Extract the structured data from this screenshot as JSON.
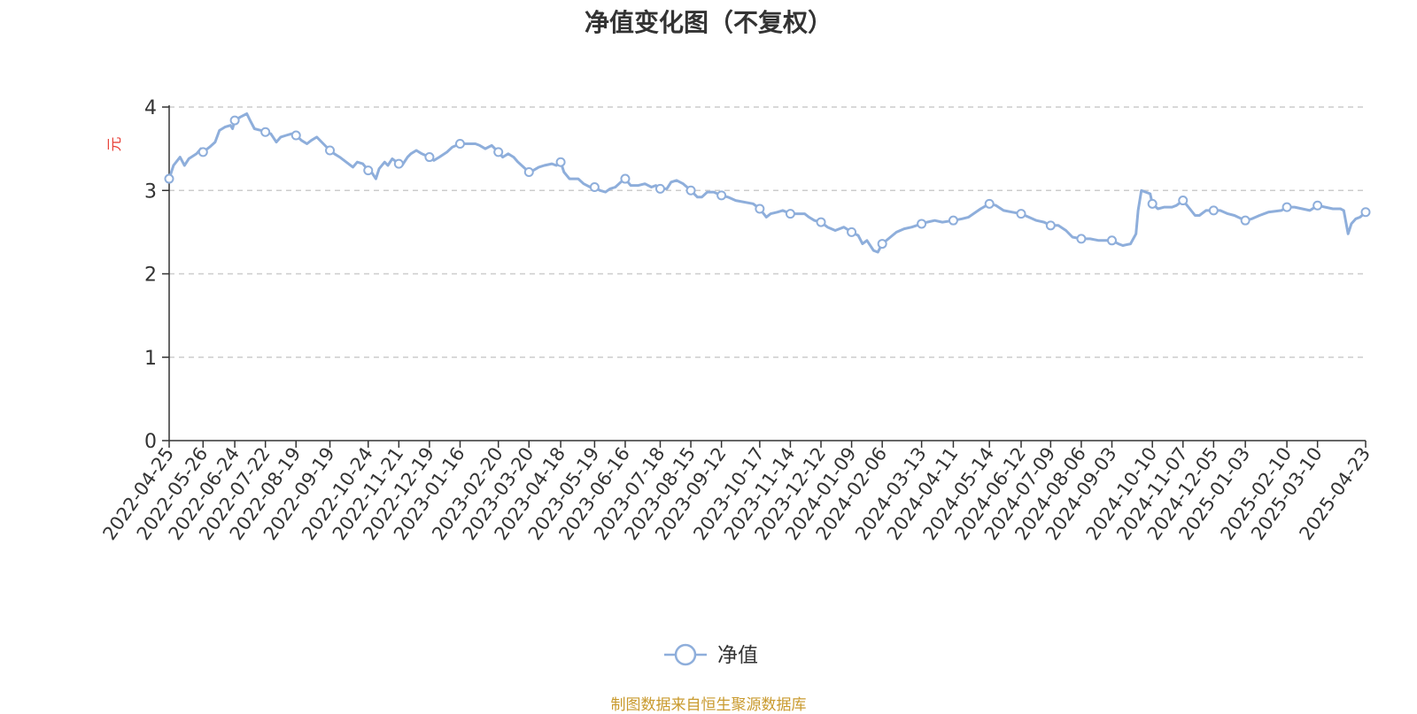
{
  "chart_data": {
    "type": "line",
    "title": "净值变化图（不复权）",
    "ylabel": "元",
    "xlabel": "",
    "ylim": [
      0,
      4
    ],
    "yticks": [
      0,
      1,
      2,
      3,
      4
    ],
    "grid": "horizontal dashed",
    "legend_position": "bottom-center",
    "x_tick_labels": [
      "2022-04-25",
      "2022-05-26",
      "2022-06-24",
      "2022-07-22",
      "2022-08-19",
      "2022-09-19",
      "2022-10-24",
      "2022-11-21",
      "2022-12-19",
      "2023-01-16",
      "2023-02-20",
      "2023-03-20",
      "2023-04-18",
      "2023-05-19",
      "2023-06-16",
      "2023-07-18",
      "2023-08-15",
      "2023-09-12",
      "2023-10-17",
      "2023-11-14",
      "2023-12-12",
      "2024-01-09",
      "2024-02-06",
      "2024-03-13",
      "2024-04-11",
      "2024-05-14",
      "2024-06-12",
      "2024-07-09",
      "2024-08-06",
      "2024-09-03",
      "2024-10-10",
      "2024-11-07",
      "2024-12-05",
      "2025-01-03",
      "2025-02-10",
      "2025-03-10",
      "2025-04-23"
    ],
    "series": [
      {
        "name": "净值",
        "color": "#8eaedb",
        "points": [
          [
            "2022-04-25",
            3.14
          ],
          [
            "2022-04-29",
            3.3
          ],
          [
            "2022-05-05",
            3.4
          ],
          [
            "2022-05-09",
            3.3
          ],
          [
            "2022-05-13",
            3.38
          ],
          [
            "2022-05-20",
            3.44
          ],
          [
            "2022-05-24",
            3.5
          ],
          [
            "2022-05-26",
            3.46
          ],
          [
            "2022-06-01",
            3.52
          ],
          [
            "2022-06-06",
            3.58
          ],
          [
            "2022-06-10",
            3.72
          ],
          [
            "2022-06-15",
            3.76
          ],
          [
            "2022-06-20",
            3.78
          ],
          [
            "2022-06-22",
            3.74
          ],
          [
            "2022-06-24",
            3.84
          ],
          [
            "2022-06-29",
            3.88
          ],
          [
            "2022-07-05",
            3.92
          ],
          [
            "2022-07-08",
            3.84
          ],
          [
            "2022-07-12",
            3.74
          ],
          [
            "2022-07-18",
            3.72
          ],
          [
            "2022-07-22",
            3.7
          ],
          [
            "2022-07-27",
            3.68
          ],
          [
            "2022-08-01",
            3.58
          ],
          [
            "2022-08-05",
            3.64
          ],
          [
            "2022-08-10",
            3.66
          ],
          [
            "2022-08-15",
            3.68
          ],
          [
            "2022-08-19",
            3.66
          ],
          [
            "2022-08-24",
            3.6
          ],
          [
            "2022-08-29",
            3.56
          ],
          [
            "2022-09-02",
            3.6
          ],
          [
            "2022-09-07",
            3.64
          ],
          [
            "2022-09-13",
            3.56
          ],
          [
            "2022-09-19",
            3.48
          ],
          [
            "2022-09-23",
            3.44
          ],
          [
            "2022-09-28",
            3.4
          ],
          [
            "2022-10-10",
            3.28
          ],
          [
            "2022-10-14",
            3.34
          ],
          [
            "2022-10-19",
            3.32
          ],
          [
            "2022-10-24",
            3.24
          ],
          [
            "2022-10-27",
            3.22
          ],
          [
            "2022-10-31",
            3.14
          ],
          [
            "2022-11-03",
            3.26
          ],
          [
            "2022-11-08",
            3.34
          ],
          [
            "2022-11-11",
            3.3
          ],
          [
            "2022-11-15",
            3.38
          ],
          [
            "2022-11-21",
            3.32
          ],
          [
            "2022-11-24",
            3.3
          ],
          [
            "2022-11-29",
            3.4
          ],
          [
            "2022-12-02",
            3.44
          ],
          [
            "2022-12-07",
            3.48
          ],
          [
            "2022-12-12",
            3.44
          ],
          [
            "2022-12-19",
            3.4
          ],
          [
            "2022-12-23",
            3.36
          ],
          [
            "2022-12-28",
            3.4
          ],
          [
            "2023-01-04",
            3.46
          ],
          [
            "2023-01-09",
            3.52
          ],
          [
            "2023-01-16",
            3.56
          ],
          [
            "2023-01-30",
            3.56
          ],
          [
            "2023-02-03",
            3.54
          ],
          [
            "2023-02-08",
            3.5
          ],
          [
            "2023-02-14",
            3.54
          ],
          [
            "2023-02-20",
            3.46
          ],
          [
            "2023-02-24",
            3.4
          ],
          [
            "2023-03-01",
            3.44
          ],
          [
            "2023-03-06",
            3.4
          ],
          [
            "2023-03-10",
            3.34
          ],
          [
            "2023-03-15",
            3.28
          ],
          [
            "2023-03-20",
            3.22
          ],
          [
            "2023-03-24",
            3.24
          ],
          [
            "2023-03-29",
            3.28
          ],
          [
            "2023-04-03",
            3.3
          ],
          [
            "2023-04-10",
            3.32
          ],
          [
            "2023-04-14",
            3.3
          ],
          [
            "2023-04-18",
            3.34
          ],
          [
            "2023-04-21",
            3.22
          ],
          [
            "2023-04-26",
            3.14
          ],
          [
            "2023-05-04",
            3.14
          ],
          [
            "2023-05-09",
            3.08
          ],
          [
            "2023-05-15",
            3.04
          ],
          [
            "2023-05-19",
            3.04
          ],
          [
            "2023-05-24",
            3.0
          ],
          [
            "2023-05-29",
            2.98
          ],
          [
            "2023-06-02",
            3.02
          ],
          [
            "2023-06-07",
            3.04
          ],
          [
            "2023-06-12",
            3.1
          ],
          [
            "2023-06-16",
            3.14
          ],
          [
            "2023-06-21",
            3.06
          ],
          [
            "2023-06-28",
            3.06
          ],
          [
            "2023-07-04",
            3.08
          ],
          [
            "2023-07-10",
            3.04
          ],
          [
            "2023-07-14",
            3.06
          ],
          [
            "2023-07-18",
            3.02
          ],
          [
            "2023-07-24",
            3.02
          ],
          [
            "2023-07-28",
            3.1
          ],
          [
            "2023-08-02",
            3.12
          ],
          [
            "2023-08-08",
            3.08
          ],
          [
            "2023-08-15",
            3.0
          ],
          [
            "2023-08-21",
            2.92
          ],
          [
            "2023-08-25",
            2.92
          ],
          [
            "2023-08-30",
            2.98
          ],
          [
            "2023-09-05",
            2.98
          ],
          [
            "2023-09-12",
            2.94
          ],
          [
            "2023-09-18",
            2.92
          ],
          [
            "2023-09-25",
            2.88
          ],
          [
            "2023-10-11",
            2.84
          ],
          [
            "2023-10-17",
            2.78
          ],
          [
            "2023-10-23",
            2.68
          ],
          [
            "2023-10-27",
            2.72
          ],
          [
            "2023-11-02",
            2.74
          ],
          [
            "2023-11-07",
            2.76
          ],
          [
            "2023-11-14",
            2.72
          ],
          [
            "2023-11-20",
            2.72
          ],
          [
            "2023-11-27",
            2.72
          ],
          [
            "2023-12-01",
            2.68
          ],
          [
            "2023-12-06",
            2.64
          ],
          [
            "2023-12-12",
            2.62
          ],
          [
            "2023-12-18",
            2.56
          ],
          [
            "2023-12-25",
            2.52
          ],
          [
            "2024-01-02",
            2.56
          ],
          [
            "2024-01-09",
            2.5
          ],
          [
            "2024-01-15",
            2.46
          ],
          [
            "2024-01-19",
            2.36
          ],
          [
            "2024-01-23",
            2.4
          ],
          [
            "2024-01-29",
            2.28
          ],
          [
            "2024-02-02",
            2.26
          ],
          [
            "2024-02-06",
            2.36
          ],
          [
            "2024-02-19",
            2.5
          ],
          [
            "2024-02-26",
            2.54
          ],
          [
            "2024-03-04",
            2.56
          ],
          [
            "2024-03-13",
            2.6
          ],
          [
            "2024-03-18",
            2.62
          ],
          [
            "2024-03-25",
            2.64
          ],
          [
            "2024-04-01",
            2.62
          ],
          [
            "2024-04-11",
            2.64
          ],
          [
            "2024-04-19",
            2.66
          ],
          [
            "2024-04-25",
            2.68
          ],
          [
            "2024-05-06",
            2.78
          ],
          [
            "2024-05-14",
            2.84
          ],
          [
            "2024-05-20",
            2.82
          ],
          [
            "2024-05-27",
            2.76
          ],
          [
            "2024-06-04",
            2.74
          ],
          [
            "2024-06-12",
            2.72
          ],
          [
            "2024-06-19",
            2.68
          ],
          [
            "2024-06-26",
            2.64
          ],
          [
            "2024-07-03",
            2.62
          ],
          [
            "2024-07-09",
            2.58
          ],
          [
            "2024-07-16",
            2.58
          ],
          [
            "2024-07-23",
            2.52
          ],
          [
            "2024-07-29",
            2.44
          ],
          [
            "2024-08-06",
            2.42
          ],
          [
            "2024-08-14",
            2.42
          ],
          [
            "2024-08-22",
            2.4
          ],
          [
            "2024-09-03",
            2.4
          ],
          [
            "2024-09-09",
            2.36
          ],
          [
            "2024-09-13",
            2.34
          ],
          [
            "2024-09-20",
            2.36
          ],
          [
            "2024-09-25",
            2.48
          ],
          [
            "2024-09-27",
            2.76
          ],
          [
            "2024-09-30",
            3.0
          ],
          [
            "2024-10-08",
            2.96
          ],
          [
            "2024-10-10",
            2.84
          ],
          [
            "2024-10-15",
            2.78
          ],
          [
            "2024-10-21",
            2.8
          ],
          [
            "2024-10-28",
            2.8
          ],
          [
            "2024-11-01",
            2.82
          ],
          [
            "2024-11-07",
            2.88
          ],
          [
            "2024-11-12",
            2.8
          ],
          [
            "2024-11-18",
            2.7
          ],
          [
            "2024-11-22",
            2.7
          ],
          [
            "2024-11-28",
            2.76
          ],
          [
            "2024-12-05",
            2.76
          ],
          [
            "2024-12-11",
            2.76
          ],
          [
            "2024-12-18",
            2.72
          ],
          [
            "2024-12-24",
            2.7
          ],
          [
            "2025-01-03",
            2.64
          ],
          [
            "2025-01-09",
            2.66
          ],
          [
            "2025-01-16",
            2.7
          ],
          [
            "2025-01-24",
            2.74
          ],
          [
            "2025-02-05",
            2.76
          ],
          [
            "2025-02-10",
            2.8
          ],
          [
            "2025-02-17",
            2.8
          ],
          [
            "2025-02-24",
            2.78
          ],
          [
            "2025-03-03",
            2.76
          ],
          [
            "2025-03-10",
            2.82
          ],
          [
            "2025-03-17",
            2.8
          ],
          [
            "2025-03-24",
            2.78
          ],
          [
            "2025-03-31",
            2.78
          ],
          [
            "2025-04-03",
            2.76
          ],
          [
            "2025-04-07",
            2.48
          ],
          [
            "2025-04-10",
            2.6
          ],
          [
            "2025-04-14",
            2.66
          ],
          [
            "2025-04-18",
            2.68
          ],
          [
            "2025-04-23",
            2.74
          ]
        ]
      }
    ]
  },
  "source_note": "制图数据来自恒生聚源数据库",
  "source_note_color": "#c99a2e",
  "ylabel_color": "#e8453c",
  "axis_color": "#333333",
  "grid_color": "#cccccc"
}
